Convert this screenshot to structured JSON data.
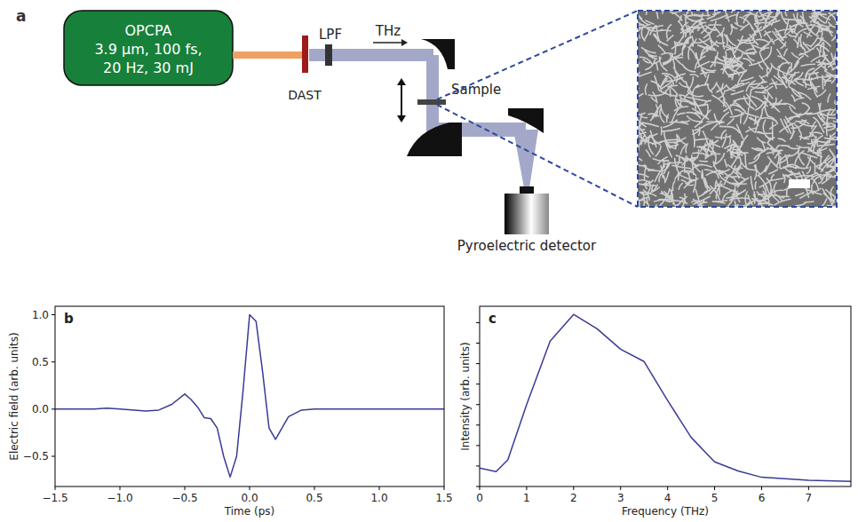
{
  "diagram": {
    "panel": "a",
    "source": {
      "lines": [
        "OPCPA",
        "3.9 µm, 100 fs,",
        "20 Hz, 30 mJ"
      ]
    },
    "components": {
      "crystal": "DAST",
      "filter": "LPF",
      "beam": "THz",
      "sample": "Sample",
      "detector": "Pyroelectric detector"
    }
  },
  "chart_data": [
    {
      "type": "line",
      "title": "b",
      "x_label": "Time (ps)",
      "y_label": "Electric field (arb. units)",
      "x": [
        -1.5,
        -1.2,
        -1.1,
        -1.0,
        -0.8,
        -0.7,
        -0.6,
        -0.5,
        -0.45,
        -0.4,
        -0.35,
        -0.3,
        -0.25,
        -0.2,
        -0.15,
        -0.1,
        -0.05,
        0,
        0.05,
        0.1,
        0.15,
        0.2,
        0.25,
        0.3,
        0.4,
        0.5,
        1.0,
        1.5
      ],
      "values": [
        0,
        0,
        0.01,
        0,
        -0.02,
        -0.01,
        0.05,
        0.16,
        0.1,
        0.02,
        -0.09,
        -0.1,
        -0.2,
        -0.5,
        -0.72,
        -0.5,
        0.2,
        1.0,
        0.93,
        0.4,
        -0.2,
        -0.32,
        -0.2,
        -0.08,
        -0.01,
        0,
        0,
        0
      ],
      "color": "#3a3a96",
      "xlim": [
        -1.5,
        1.5
      ],
      "xticks": [
        {
          "value": -1.5,
          "label": "−1.5"
        },
        {
          "value": -1,
          "label": "−1.0"
        },
        {
          "value": -0.5,
          "label": "−0.5"
        },
        {
          "value": 0,
          "label": "0.0"
        },
        0.5,
        {
          "value": 1,
          "label": "1.0"
        },
        1.5
      ],
      "ylim": [
        -0.82,
        1.09
      ],
      "yticks": [
        {
          "value": -0.5,
          "label": "−0.5"
        },
        {
          "value": 0,
          "label": "0.0"
        },
        0.5,
        {
          "value": 1,
          "label": "1.0"
        }
      ]
    },
    {
      "type": "line",
      "title": "c",
      "x_label": "Frequency (THz)",
      "y_label": "Intensity (arb. units)",
      "x": [
        0,
        0.35,
        0.6,
        1,
        1.5,
        2,
        2.5,
        3,
        3.5,
        4,
        4.5,
        5,
        5.5,
        6,
        7,
        7.9
      ],
      "values": [
        0.9,
        0.73,
        1.3,
        4,
        7.1,
        8.4,
        7.7,
        6.7,
        6.1,
        4.2,
        2.4,
        1.2,
        0.76,
        0.45,
        0.3,
        0.25
      ],
      "color": "#3a3a96",
      "xlim": [
        0,
        7.9
      ],
      "xticks": [
        0,
        1,
        2,
        3,
        4,
        5,
        6,
        7
      ],
      "ylim": [
        0,
        8.8
      ],
      "yticks": [
        0,
        1,
        2,
        3,
        4,
        5,
        6,
        7,
        8
      ],
      "tick_labels": "x"
    }
  ]
}
